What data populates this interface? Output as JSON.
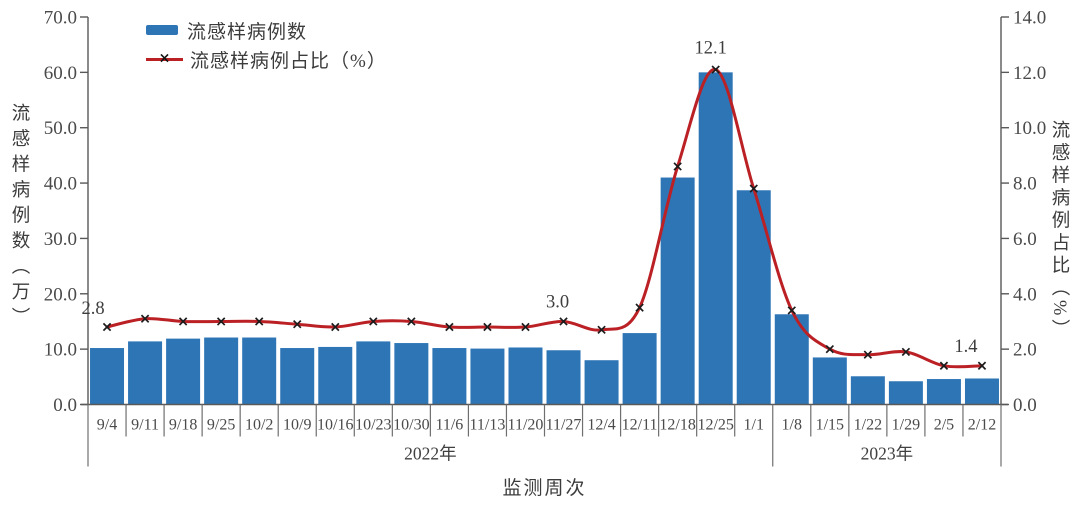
{
  "chart_data": {
    "type": "bar+line",
    "categories": [
      "9/4",
      "9/11",
      "9/18",
      "9/25",
      "10/2",
      "10/9",
      "10/16",
      "10/23",
      "10/30",
      "11/6",
      "11/13",
      "11/20",
      "11/27",
      "12/4",
      "12/11",
      "12/18",
      "12/25",
      "1/1",
      "1/8",
      "1/15",
      "1/22",
      "1/29",
      "2/5",
      "2/12"
    ],
    "series": [
      {
        "name": "流感样病例数",
        "type": "bar",
        "axis": "left",
        "color": "#2e75b6",
        "values": [
          10.2,
          11.4,
          11.9,
          12.1,
          12.1,
          10.2,
          10.4,
          11.4,
          11.1,
          10.2,
          10.1,
          10.3,
          9.8,
          8.0,
          12.9,
          41.0,
          60.0,
          38.7,
          16.3,
          8.5,
          5.1,
          4.2,
          4.6,
          4.7
        ]
      },
      {
        "name": "流感样病例占比（%）",
        "type": "line",
        "axis": "right",
        "color": "#bb2025",
        "marker": "x",
        "marker_color": "#1c1c1c",
        "values": [
          2.8,
          3.1,
          3.0,
          3.0,
          3.0,
          2.9,
          2.8,
          3.0,
          3.0,
          2.8,
          2.8,
          2.8,
          3.0,
          2.7,
          3.5,
          8.6,
          12.1,
          7.8,
          3.4,
          2.0,
          1.8,
          1.9,
          1.4,
          1.4
        ]
      }
    ],
    "left_axis": {
      "title": "流感样病例数（万）",
      "min": 0,
      "max": 70,
      "step": 10,
      "tick_decimals": 1
    },
    "right_axis": {
      "title": "流感样病例占比（%）",
      "min": 0,
      "max": 14,
      "step": 2,
      "tick_decimals": 1
    },
    "x_axis": {
      "title": "监测周次",
      "groups": [
        {
          "label": "2022年",
          "span": [
            0,
            17
          ]
        },
        {
          "label": "2023年",
          "span": [
            18,
            23
          ]
        }
      ]
    },
    "annotations": [
      {
        "index": 0,
        "text": "2.8"
      },
      {
        "index": 12,
        "text": "3.0"
      },
      {
        "index": 16,
        "text": "12.1"
      },
      {
        "index": 23,
        "text": "1.4"
      }
    ],
    "grid": false,
    "legend_position": "top-left"
  }
}
